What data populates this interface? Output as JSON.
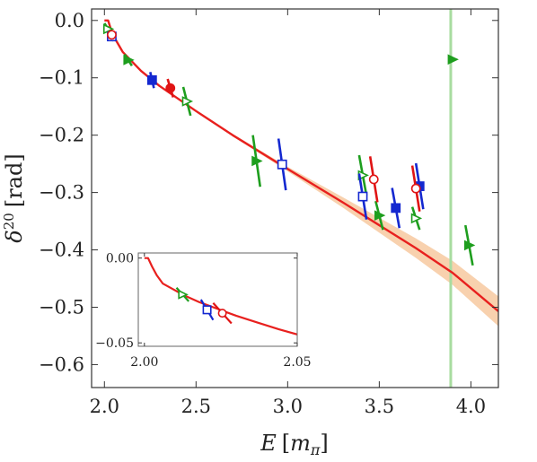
{
  "chart_data": [
    {
      "type": "scatter",
      "xlabel_symbol": "E",
      "xlabel_unit": "m",
      "xlabel_unit_sub": "π",
      "ylabel_symbol": "δ",
      "ylabel_sup": "20",
      "ylabel_unit": "rad",
      "xlim": [
        1.93,
        4.15
      ],
      "ylim": [
        -0.64,
        0.02
      ],
      "x_ticks": [
        2.0,
        2.5,
        3.0,
        3.5,
        4.0
      ],
      "x_tick_labels": [
        "2.0",
        "2.5",
        "3.0",
        "3.5",
        "4.0"
      ],
      "y_ticks": [
        0.0,
        -0.1,
        -0.2,
        -0.3,
        -0.4,
        -0.5,
        -0.6
      ],
      "y_tick_labels": [
        "0.0",
        "−0.1",
        "−0.2",
        "−0.3",
        "−0.4",
        "−0.5",
        "−0.6"
      ],
      "colors": {
        "curve": "#e8201e",
        "band": "#f7c9a0",
        "vline": "#a8dca0",
        "green": "#1e9e1e",
        "blue": "#1428d0",
        "red": "#e01414"
      },
      "vertical_line_x": 3.89,
      "fit_curve": {
        "x": [
          2.0,
          2.02,
          2.04,
          2.06,
          2.1,
          2.2,
          2.3,
          2.5,
          2.7,
          3.0,
          3.3,
          3.5,
          3.7,
          3.9,
          4.15
        ],
        "y": [
          0.0,
          0.0,
          -0.02,
          -0.033,
          -0.055,
          -0.088,
          -0.114,
          -0.158,
          -0.2,
          -0.259,
          -0.317,
          -0.357,
          -0.397,
          -0.44,
          -0.507
        ],
        "band_halfwidth": [
          0.0,
          0.0,
          0.0,
          0.0,
          0.0,
          0.0,
          0.0,
          0.0,
          0.002,
          0.004,
          0.009,
          0.013,
          0.017,
          0.021,
          0.026
        ]
      },
      "series": [
        {
          "color": "green",
          "marker": "triangle-right",
          "filled": false,
          "points": [
            {
              "x": 2.02,
              "y": -0.015,
              "err": 0.01,
              "tilt": 0.02
            },
            {
              "x": 2.45,
              "y": -0.141,
              "err": 0.025,
              "tilt": 0.02
            },
            {
              "x": 3.41,
              "y": -0.27,
              "err": 0.035,
              "tilt": 0.02
            },
            {
              "x": 3.7,
              "y": -0.345,
              "err": 0.02,
              "tilt": 0.02
            }
          ]
        },
        {
          "color": "green",
          "marker": "triangle-right",
          "filled": true,
          "points": [
            {
              "x": 2.13,
              "y": -0.069,
              "err": 0.01,
              "tilt": 0.02
            },
            {
              "x": 2.83,
              "y": -0.245,
              "err": 0.045,
              "tilt": 0.02
            },
            {
              "x": 3.5,
              "y": -0.34,
              "err": 0.025,
              "tilt": 0.02
            },
            {
              "x": 3.9,
              "y": -0.068,
              "err": 0.0,
              "tilt": 0.0
            },
            {
              "x": 3.99,
              "y": -0.392,
              "err": 0.035,
              "tilt": 0.02
            }
          ]
        },
        {
          "color": "blue",
          "marker": "square",
          "filled": false,
          "points": [
            {
              "x": 2.04,
              "y": -0.028,
              "err": 0.008,
              "tilt": 0.01
            },
            {
              "x": 2.97,
              "y": -0.251,
              "err": 0.045,
              "tilt": 0.02
            },
            {
              "x": 3.41,
              "y": -0.307,
              "err": 0.04,
              "tilt": 0.02
            }
          ]
        },
        {
          "color": "blue",
          "marker": "square",
          "filled": true,
          "points": [
            {
              "x": 2.26,
              "y": -0.104,
              "err": 0.014,
              "tilt": 0.01
            },
            {
              "x": 3.59,
              "y": -0.327,
              "err": 0.035,
              "tilt": 0.02
            },
            {
              "x": 3.72,
              "y": -0.289,
              "err": 0.04,
              "tilt": 0.02
            }
          ]
        },
        {
          "color": "red",
          "marker": "circle",
          "filled": false,
          "points": [
            {
              "x": 2.04,
              "y": -0.025,
              "err": 0.006,
              "tilt": 0.01
            },
            {
              "x": 3.47,
              "y": -0.277,
              "err": 0.04,
              "tilt": 0.02
            },
            {
              "x": 3.7,
              "y": -0.293,
              "err": 0.04,
              "tilt": 0.02
            }
          ]
        },
        {
          "color": "red",
          "marker": "circle",
          "filled": true,
          "points": [
            {
              "x": 2.36,
              "y": -0.118,
              "err": 0.016,
              "tilt": 0.015
            }
          ]
        }
      ]
    },
    {
      "type": "scatter",
      "panel": "inset",
      "xlim": [
        1.998,
        2.05
      ],
      "ylim": [
        -0.052,
        0.003
      ],
      "x_ticks": [
        2.0,
        2.05
      ],
      "x_tick_labels": [
        "2.00",
        "2.05"
      ],
      "y_ticks": [
        0.0,
        -0.05
      ],
      "y_tick_labels": [
        "0.00",
        "−0.05"
      ],
      "fit_curve": {
        "x": [
          2.0,
          2.0012,
          2.0025,
          2.004,
          2.006,
          2.009,
          2.013,
          2.018,
          2.024,
          2.03,
          2.037,
          2.044,
          2.05
        ],
        "y": [
          0.0,
          0.0,
          -0.005,
          -0.01,
          -0.015,
          -0.018,
          -0.022,
          -0.026,
          -0.03,
          -0.034,
          -0.038,
          -0.042,
          -0.045
        ]
      },
      "series": [
        {
          "color": "green",
          "marker": "triangle-right",
          "filled": false,
          "points": [
            {
              "x": 2.0125,
              "y": -0.0215,
              "err": 0.004,
              "tilt": 0.002
            }
          ]
        },
        {
          "color": "blue",
          "marker": "square",
          "filled": false,
          "points": [
            {
              "x": 2.0205,
              "y": -0.0305,
              "err": 0.006,
              "tilt": 0.002
            }
          ]
        },
        {
          "color": "red",
          "marker": "circle",
          "filled": false,
          "points": [
            {
              "x": 2.0255,
              "y": -0.0325,
              "err": 0.006,
              "tilt": 0.003
            }
          ]
        }
      ]
    }
  ]
}
